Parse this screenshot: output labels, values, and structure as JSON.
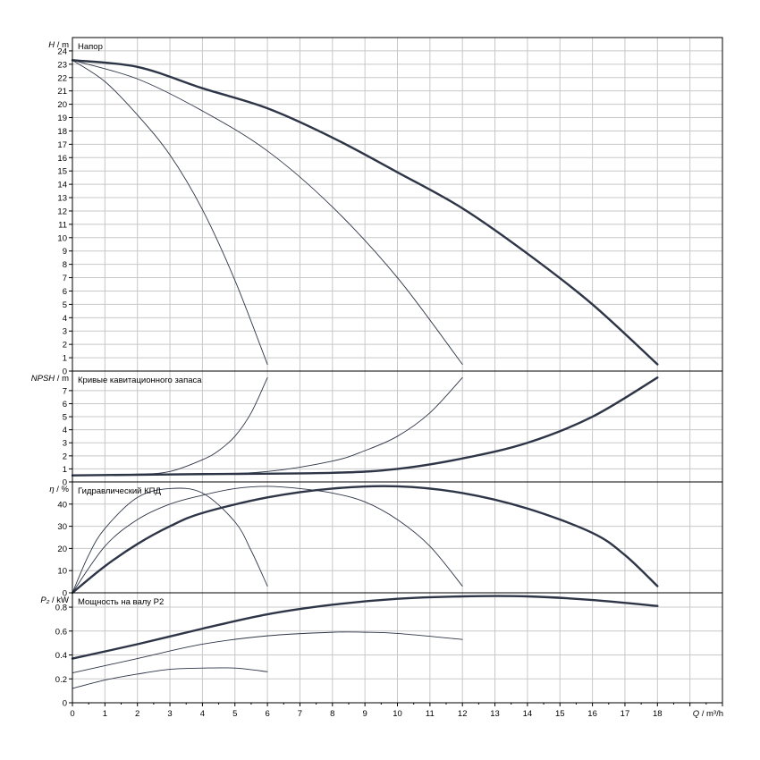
{
  "chart_data": {
    "type": "line",
    "x_axis": {
      "label_symbol": "Q",
      "label_unit": " / m³/h",
      "min": 0,
      "max": 20,
      "ticks": [
        0,
        1,
        2,
        3,
        4,
        5,
        6,
        7,
        8,
        9,
        10,
        11,
        12,
        13,
        14,
        15,
        16,
        17,
        18
      ]
    },
    "grid": true,
    "panels": [
      {
        "id": "head",
        "title": "Напор",
        "y_symbol": "H",
        "y_unit": " / m",
        "ylim": [
          0,
          25
        ],
        "ticks": [
          0,
          1,
          2,
          3,
          4,
          5,
          6,
          7,
          8,
          9,
          10,
          11,
          12,
          13,
          14,
          15,
          16,
          17,
          18,
          19,
          20,
          21,
          22,
          23,
          24
        ],
        "series": [
          {
            "weight": "thick",
            "points": [
              [
                0,
                23.3
              ],
              [
                2,
                22.8
              ],
              [
                4,
                21.2
              ],
              [
                6,
                19.7
              ],
              [
                8,
                17.5
              ],
              [
                10,
                14.9
              ],
              [
                12,
                12.2
              ],
              [
                14,
                8.8
              ],
              [
                16,
                5.0
              ],
              [
                18,
                0.5
              ]
            ]
          },
          {
            "weight": "thin",
            "points": [
              [
                0,
                23.3
              ],
              [
                2,
                21.9
              ],
              [
                4,
                19.5
              ],
              [
                6,
                16.5
              ],
              [
                8,
                12.3
              ],
              [
                10,
                7.0
              ],
              [
                12,
                0.5
              ]
            ]
          },
          {
            "weight": "thin",
            "points": [
              [
                0,
                23.3
              ],
              [
                1,
                21.7
              ],
              [
                2,
                19.2
              ],
              [
                3,
                16.2
              ],
              [
                4,
                12.1
              ],
              [
                5,
                6.8
              ],
              [
                6,
                0.5
              ]
            ]
          }
        ]
      },
      {
        "id": "npsh",
        "title": "Кривые кавитационного запаса",
        "y_symbol": "NPSH",
        "y_unit": " / m",
        "ylim": [
          0,
          8.5
        ],
        "ticks": [
          0,
          1,
          2,
          3,
          4,
          5,
          6,
          7
        ],
        "series": [
          {
            "weight": "thick",
            "points": [
              [
                0,
                0.5
              ],
              [
                4,
                0.6
              ],
              [
                8,
                0.7
              ],
              [
                10,
                1.0
              ],
              [
                12,
                1.8
              ],
              [
                14,
                3.0
              ],
              [
                16,
                5.0
              ],
              [
                18,
                8.0
              ]
            ]
          },
          {
            "weight": "thin",
            "points": [
              [
                0,
                0.5
              ],
              [
                4,
                0.6
              ],
              [
                6,
                0.8
              ],
              [
                8,
                1.6
              ],
              [
                9,
                2.4
              ],
              [
                10,
                3.5
              ],
              [
                11,
                5.3
              ],
              [
                12,
                8.0
              ]
            ]
          },
          {
            "weight": "thin",
            "points": [
              [
                0,
                0.5
              ],
              [
                2,
                0.6
              ],
              [
                3,
                0.8
              ],
              [
                4,
                1.7
              ],
              [
                4.5,
                2.4
              ],
              [
                5,
                3.5
              ],
              [
                5.5,
                5.3
              ],
              [
                6,
                8.0
              ]
            ]
          }
        ]
      },
      {
        "id": "efficiency",
        "title": "Гидравлический КПД",
        "y_symbol": "η",
        "y_unit": " / %",
        "ylim": [
          0,
          50
        ],
        "ticks": [
          0,
          10,
          20,
          30,
          40
        ],
        "series": [
          {
            "weight": "thick",
            "points": [
              [
                0,
                0
              ],
              [
                1,
                12
              ],
              [
                2,
                22
              ],
              [
                3,
                30
              ],
              [
                4,
                36
              ],
              [
                6,
                43
              ],
              [
                8,
                47
              ],
              [
                10,
                48
              ],
              [
                12,
                45
              ],
              [
                14,
                38
              ],
              [
                16,
                27
              ],
              [
                17,
                17
              ],
              [
                18,
                3
              ]
            ]
          },
          {
            "weight": "thin",
            "points": [
              [
                0,
                0
              ],
              [
                1,
                21
              ],
              [
                2,
                33
              ],
              [
                3,
                40
              ],
              [
                4,
                44
              ],
              [
                5,
                47
              ],
              [
                6,
                48
              ],
              [
                7,
                47
              ],
              [
                8,
                45
              ],
              [
                9,
                41
              ],
              [
                10,
                33
              ],
              [
                11,
                21
              ],
              [
                12,
                3
              ]
            ]
          },
          {
            "weight": "thin",
            "points": [
              [
                0,
                0
              ],
              [
                0.5,
                17
              ],
              [
                1,
                29
              ],
              [
                2,
                43
              ],
              [
                3,
                47
              ],
              [
                4,
                45
              ],
              [
                5,
                32
              ],
              [
                5.5,
                19
              ],
              [
                6,
                3
              ]
            ]
          }
        ]
      },
      {
        "id": "power",
        "title": "Мощность на валу P2",
        "y_symbol": "P₂",
        "y_unit": " / kW",
        "ylim": [
          0,
          0.92
        ],
        "ticks": [
          0,
          0.2,
          0.4,
          0.6,
          0.8
        ],
        "series": [
          {
            "weight": "thick",
            "points": [
              [
                0,
                0.37
              ],
              [
                2,
                0.49
              ],
              [
                4,
                0.62
              ],
              [
                6,
                0.74
              ],
              [
                8,
                0.82
              ],
              [
                10,
                0.87
              ],
              [
                12,
                0.89
              ],
              [
                14,
                0.89
              ],
              [
                16,
                0.86
              ],
              [
                18,
                0.81
              ]
            ]
          },
          {
            "weight": "thin",
            "points": [
              [
                0,
                0.25
              ],
              [
                2,
                0.37
              ],
              [
                4,
                0.49
              ],
              [
                6,
                0.56
              ],
              [
                8,
                0.59
              ],
              [
                9,
                0.59
              ],
              [
                10,
                0.58
              ],
              [
                12,
                0.53
              ]
            ]
          },
          {
            "weight": "thin",
            "points": [
              [
                0,
                0.12
              ],
              [
                1,
                0.19
              ],
              [
                2,
                0.24
              ],
              [
                3,
                0.28
              ],
              [
                4,
                0.29
              ],
              [
                5,
                0.29
              ],
              [
                6,
                0.26
              ]
            ]
          }
        ]
      }
    ]
  }
}
